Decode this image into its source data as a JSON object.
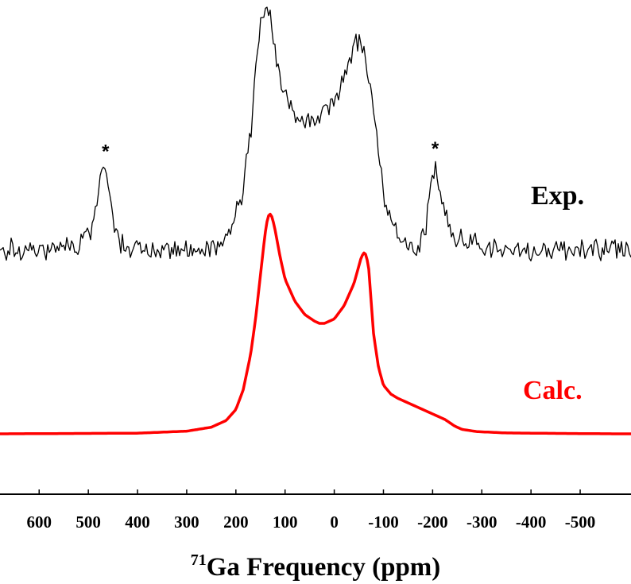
{
  "chart_data": {
    "type": "line",
    "title": "",
    "xlabel": {
      "superscript": "71",
      "text": "Ga Frequency (ppm)"
    },
    "ylabel": "",
    "x_reversed": true,
    "xlim": [
      -575,
      680
    ],
    "x_ticks": [
      600,
      500,
      400,
      300,
      200,
      100,
      0,
      -100,
      -200,
      -300,
      -400,
      -500
    ],
    "x_tick_labels": [
      "600",
      "500",
      "400",
      "300",
      "200",
      "100",
      "0",
      "-100",
      "-200",
      "-300",
      "-400",
      "-500"
    ],
    "y_axis_shown": false,
    "grid": false,
    "series": [
      {
        "name": "Exp.",
        "color": "#000000",
        "style": "noisy",
        "x": [
          680,
          620,
          560,
          520,
          495,
          480,
          470,
          460,
          450,
          440,
          420,
          400,
          360,
          320,
          280,
          250,
          225,
          205,
          185,
          170,
          160,
          150,
          140,
          132,
          125,
          118,
          110,
          100,
          90,
          75,
          60,
          45,
          30,
          15,
          0,
          -10,
          -20,
          -30,
          -40,
          -50,
          -60,
          -70,
          -80,
          -90,
          -100,
          -115,
          -130,
          -150,
          -170,
          -185,
          -195,
          -205,
          -215,
          -225,
          -240,
          -260,
          -300,
          -350,
          -400,
          -450,
          -500,
          -575
        ],
        "values": [
          0.06,
          0.06,
          0.06,
          0.07,
          0.14,
          0.28,
          0.38,
          0.32,
          0.18,
          0.1,
          0.07,
          0.06,
          0.06,
          0.06,
          0.06,
          0.07,
          0.09,
          0.16,
          0.3,
          0.52,
          0.76,
          0.94,
          1.0,
          0.98,
          0.9,
          0.82,
          0.74,
          0.66,
          0.62,
          0.58,
          0.57,
          0.56,
          0.58,
          0.6,
          0.63,
          0.67,
          0.72,
          0.78,
          0.84,
          0.87,
          0.83,
          0.72,
          0.58,
          0.44,
          0.28,
          0.16,
          0.1,
          0.06,
          0.06,
          0.14,
          0.3,
          0.36,
          0.3,
          0.2,
          0.13,
          0.09,
          0.07,
          0.06,
          0.06,
          0.06,
          0.06,
          0.06
        ]
      },
      {
        "name": "Calc.",
        "color": "#ff0000",
        "style": "smooth",
        "x": [
          680,
          400,
          300,
          250,
          220,
          200,
          185,
          170,
          160,
          150,
          143,
          138,
          132,
          126,
          120,
          110,
          100,
          80,
          60,
          40,
          30,
          20,
          0,
          -20,
          -40,
          -50,
          -55,
          -60,
          -65,
          -70,
          -75,
          -80,
          -90,
          -100,
          -115,
          -130,
          -150,
          -170,
          -190,
          -210,
          -225,
          -235,
          -245,
          -260,
          -290,
          -350,
          -450,
          -575
        ],
        "values": [
          0.0,
          0.003,
          0.012,
          0.03,
          0.06,
          0.11,
          0.2,
          0.36,
          0.52,
          0.72,
          0.86,
          0.95,
          1.0,
          0.98,
          0.92,
          0.8,
          0.7,
          0.6,
          0.54,
          0.51,
          0.5,
          0.5,
          0.52,
          0.58,
          0.68,
          0.76,
          0.8,
          0.82,
          0.81,
          0.75,
          0.6,
          0.45,
          0.3,
          0.22,
          0.18,
          0.16,
          0.14,
          0.12,
          0.1,
          0.08,
          0.065,
          0.05,
          0.035,
          0.02,
          0.01,
          0.004,
          0.002,
          0.0
        ]
      }
    ],
    "annotations": [
      {
        "text": "*",
        "x": 465
      },
      {
        "text": "*",
        "x": -205
      }
    ]
  }
}
